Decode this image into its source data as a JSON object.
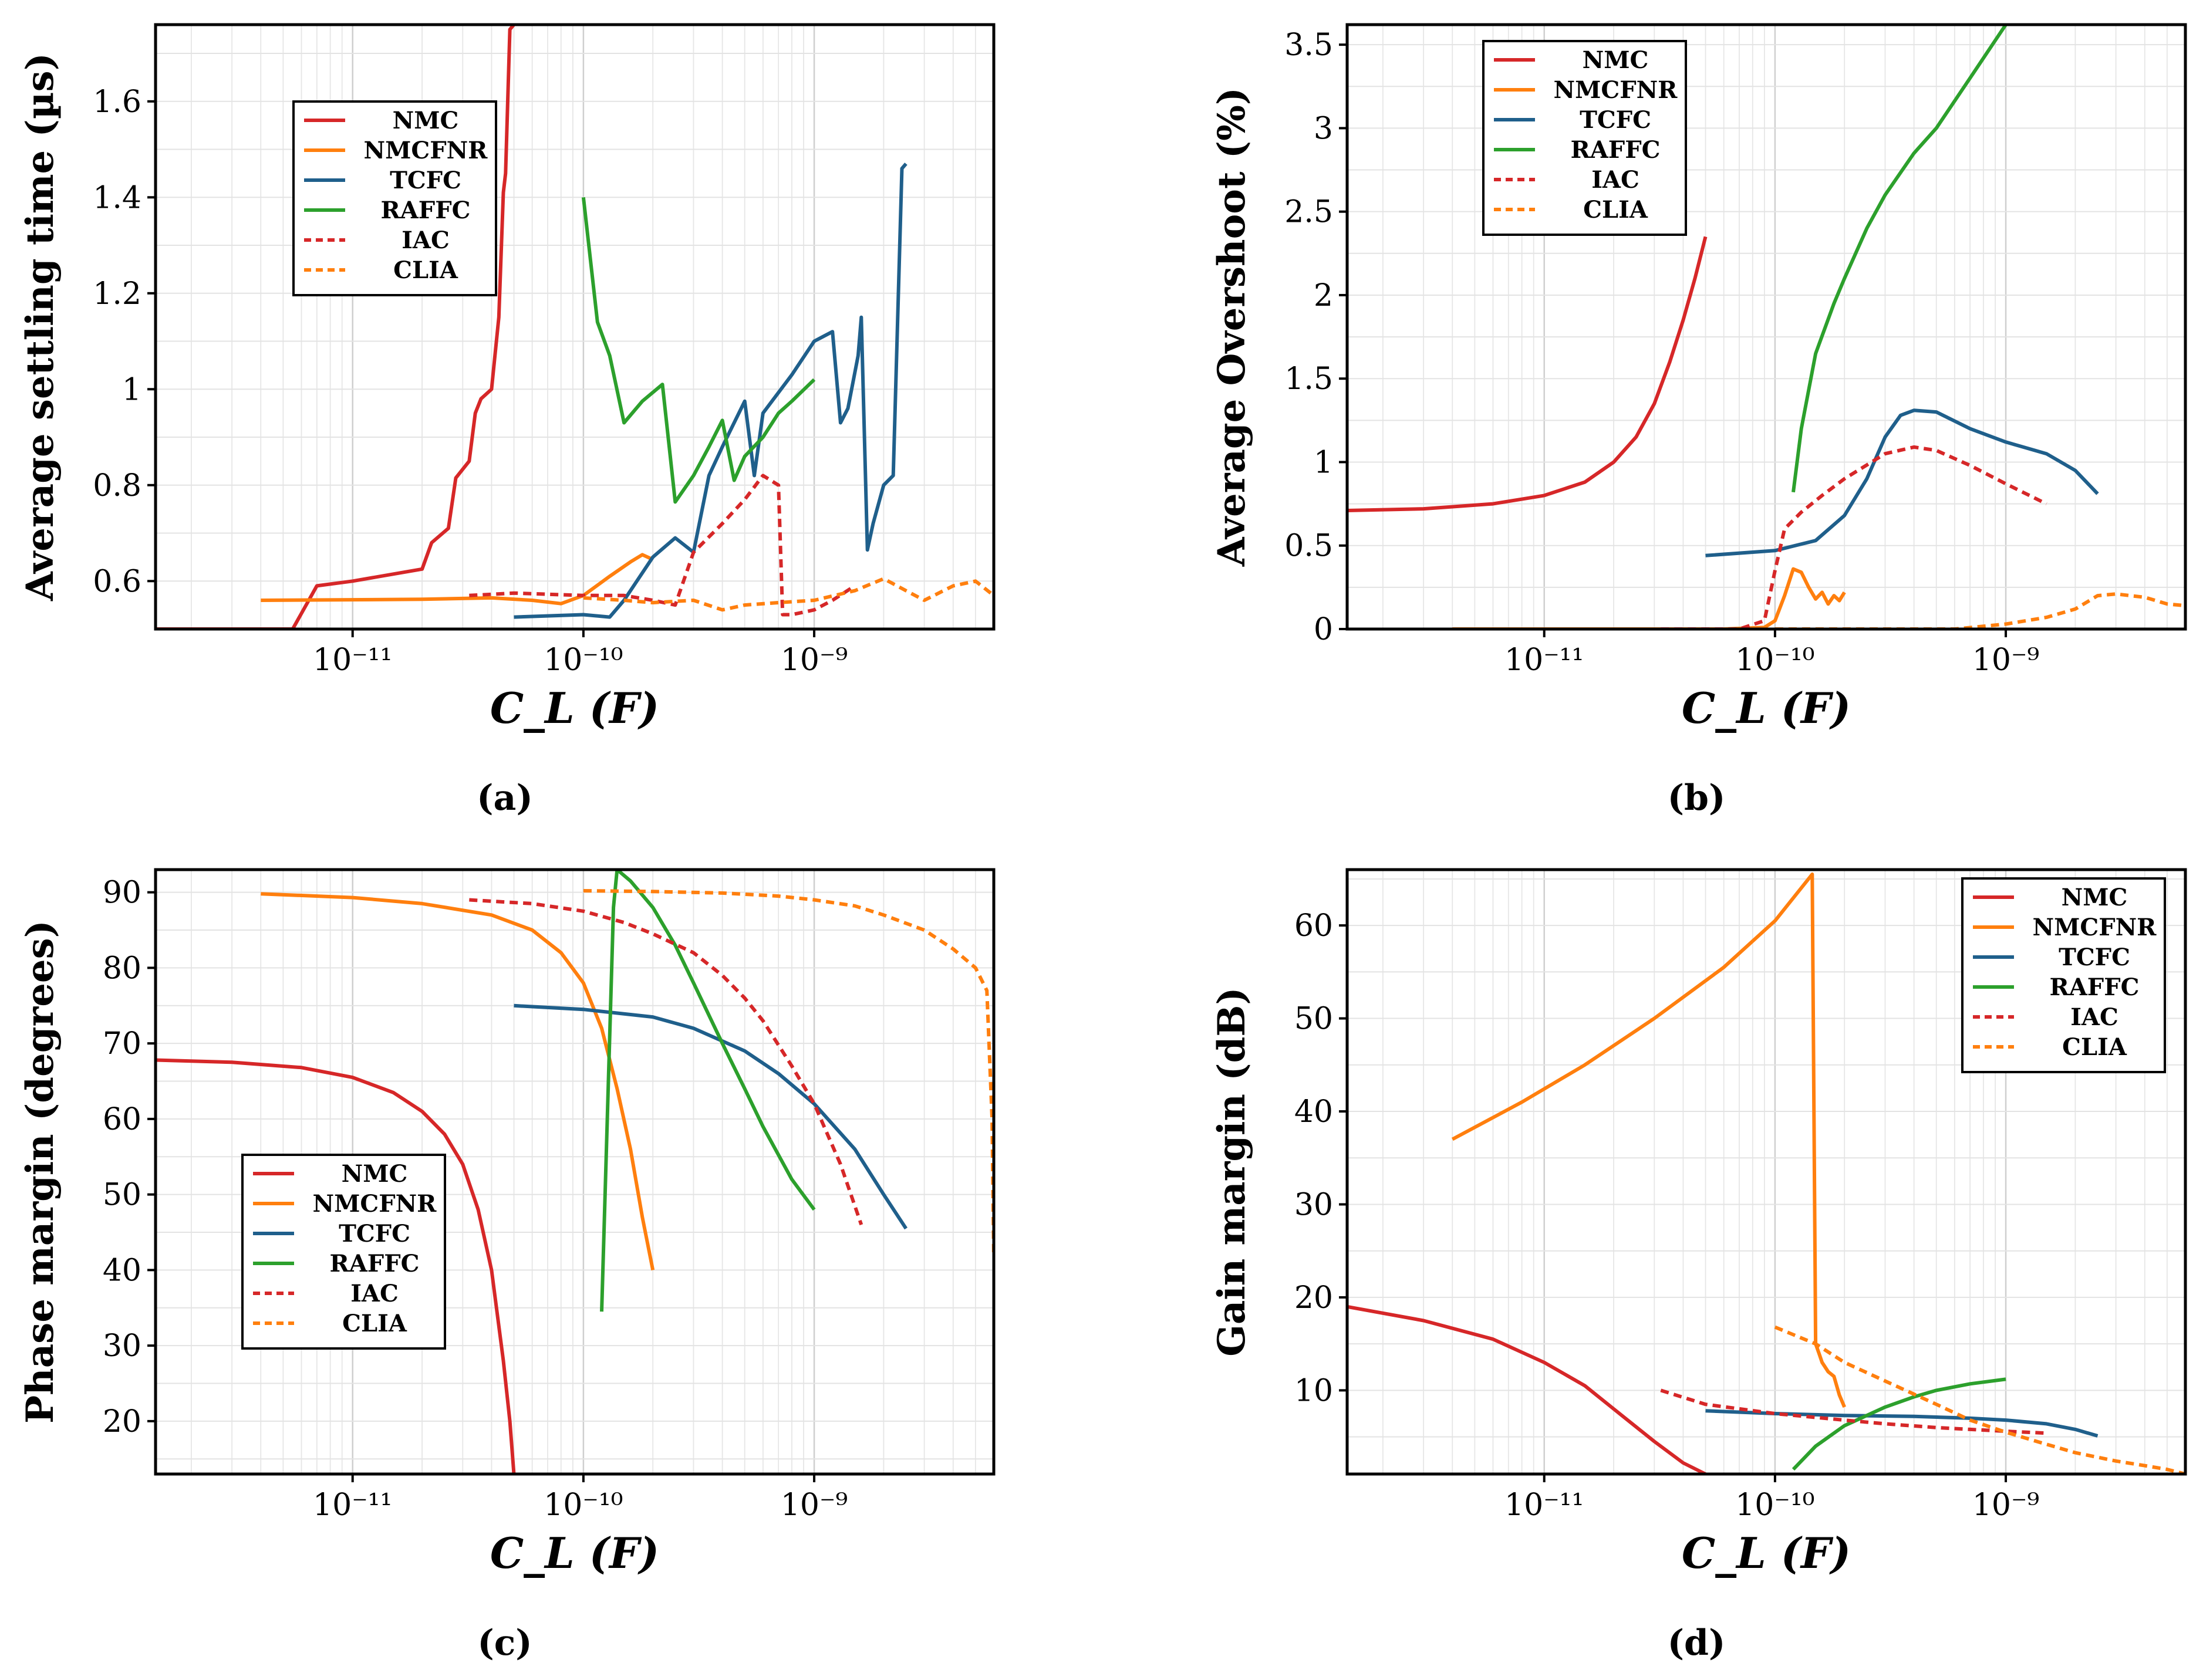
{
  "captions": [
    "(a)",
    "(b)",
    "(c)",
    "(d)"
  ],
  "colors": {
    "NMC": "#d62728",
    "NMCFNR": "#ff7f0e",
    "TCFC": "#1f5f8b",
    "RAFFC": "#2ca02c",
    "IAC": "#d62728",
    "CLIA": "#ff7f0e"
  },
  "chart_data": [
    {
      "type": "line",
      "xlabel": "C_L (F)",
      "ylabel": "Average settling time (µs)",
      "xscale": "log",
      "xlim": [
        1.4e-12,
        6e-09
      ],
      "ylim": [
        0.5,
        1.76
      ],
      "yticks": [
        0.6,
        0.8,
        1,
        1.2,
        1.4,
        1.6
      ],
      "yticklabels": [
        "0.6",
        "0.8",
        "1",
        "1.2",
        "1.4",
        "1.6"
      ],
      "xticks": [
        1e-11,
        1e-10,
        1e-09
      ],
      "xticklabels": [
        "10^-11",
        "10^-10",
        "10^-9"
      ],
      "legend": {
        "position": "upper-left",
        "entries": [
          "NMC",
          "NMCFNR",
          "TCFC",
          "RAFFC",
          "IAC",
          "CLIA"
        ]
      },
      "series": [
        {
          "name": "NMC",
          "style": "solid",
          "x": [
            1.4e-12,
            5.5e-12,
            7e-12,
            1e-11,
            2e-11,
            2.2e-11,
            2.6e-11,
            2.8e-11,
            3.2e-11,
            3.4e-11,
            3.6e-11,
            4e-11,
            4.3e-11,
            4.5e-11,
            4.6e-11,
            4.8e-11,
            5e-11
          ],
          "y": [
            0.5,
            0.5,
            0.59,
            0.6,
            0.625,
            0.68,
            0.71,
            0.815,
            0.85,
            0.95,
            0.98,
            1.0,
            1.15,
            1.41,
            1.45,
            1.75,
            1.76
          ]
        },
        {
          "name": "NMCFNR",
          "style": "solid",
          "x": [
            4e-12,
            2e-11,
            4e-11,
            6e-11,
            8e-11,
            1e-10,
            1.3e-10,
            1.6e-10,
            1.8e-10,
            2e-10
          ],
          "y": [
            0.56,
            0.562,
            0.565,
            0.56,
            0.553,
            0.57,
            0.61,
            0.64,
            0.655,
            0.645
          ]
        },
        {
          "name": "TCFC",
          "style": "solid",
          "x": [
            5e-11,
            1e-10,
            1.3e-10,
            1.5e-10,
            2e-10,
            2.5e-10,
            3e-10,
            3.5e-10,
            4e-10,
            5e-10,
            5.5e-10,
            6e-10,
            8e-10,
            1e-09,
            1.2e-09,
            1.3e-09,
            1.4e-09,
            1.55e-09,
            1.6e-09,
            1.7e-09,
            1.8e-09,
            2e-09,
            2.2e-09,
            2.4e-09,
            2.5e-09
          ],
          "y": [
            0.525,
            0.53,
            0.525,
            0.56,
            0.65,
            0.69,
            0.66,
            0.82,
            0.88,
            0.975,
            0.82,
            0.95,
            1.03,
            1.1,
            1.12,
            0.93,
            0.96,
            1.07,
            1.15,
            0.665,
            0.72,
            0.8,
            0.82,
            1.46,
            1.47
          ]
        },
        {
          "name": "RAFFC",
          "style": "solid",
          "x": [
            1e-10,
            1.15e-10,
            1.3e-10,
            1.5e-10,
            1.8e-10,
            2.2e-10,
            2.5e-10,
            3e-10,
            3.5e-10,
            4e-10,
            4.5e-10,
            5e-10,
            6e-10,
            7e-10,
            8e-10,
            1e-09
          ],
          "y": [
            1.4,
            1.14,
            1.07,
            0.93,
            0.975,
            1.01,
            0.765,
            0.82,
            0.88,
            0.935,
            0.81,
            0.86,
            0.9,
            0.95,
            0.975,
            1.02
          ]
        },
        {
          "name": "IAC",
          "style": "dashed",
          "x": [
            3.2e-11,
            5e-11,
            1e-10,
            1.5e-10,
            2e-10,
            2.5e-10,
            3e-10,
            4e-10,
            5e-10,
            6e-10,
            7e-10,
            7.3e-10,
            8e-10,
            1e-09,
            1.2e-09,
            1.5e-09
          ],
          "y": [
            0.57,
            0.575,
            0.57,
            0.57,
            0.56,
            0.55,
            0.66,
            0.72,
            0.77,
            0.82,
            0.8,
            0.53,
            0.53,
            0.54,
            0.56,
            0.59
          ]
        },
        {
          "name": "CLIA",
          "style": "dashed",
          "x": [
            1e-10,
            1.5e-10,
            2e-10,
            3e-10,
            4e-10,
            5e-10,
            7e-10,
            1e-09,
            1.5e-09,
            2e-09,
            2.5e-09,
            3e-09,
            4e-09,
            5e-09,
            6e-09
          ],
          "y": [
            0.565,
            0.56,
            0.555,
            0.56,
            0.54,
            0.55,
            0.555,
            0.56,
            0.58,
            0.605,
            0.58,
            0.56,
            0.59,
            0.6,
            0.57
          ]
        }
      ]
    },
    {
      "type": "line",
      "xlabel": "C_L (F)",
      "ylabel": "Average Overshoot (%)",
      "xscale": "log",
      "xlim": [
        1.4e-12,
        6e-09
      ],
      "ylim": [
        0,
        3.62
      ],
      "yticks": [
        0,
        0.5,
        1,
        1.5,
        2,
        2.5,
        3,
        3.5
      ],
      "yticklabels": [
        "0",
        "0.5",
        "1",
        "1.5",
        "2",
        "2.5",
        "3",
        "3.5"
      ],
      "xticks": [
        1e-11,
        1e-10,
        1e-09
      ],
      "xticklabels": [
        "10^-11",
        "10^-10",
        "10^-9"
      ],
      "legend": {
        "position": "upper-left",
        "entries": [
          "NMC",
          "NMCFNR",
          "TCFC",
          "RAFFC",
          "IAC",
          "CLIA"
        ]
      },
      "series": [
        {
          "name": "NMC",
          "style": "solid",
          "x": [
            1.4e-12,
            3e-12,
            6e-12,
            1e-11,
            1.5e-11,
            2e-11,
            2.5e-11,
            3e-11,
            3.5e-11,
            4e-11,
            4.5e-11,
            5e-11
          ],
          "y": [
            0.71,
            0.72,
            0.75,
            0.8,
            0.88,
            1.0,
            1.15,
            1.35,
            1.6,
            1.85,
            2.1,
            2.35
          ]
        },
        {
          "name": "NMCFNR",
          "style": "solid",
          "x": [
            4e-12,
            1e-11,
            3e-11,
            6e-11,
            9e-11,
            1e-10,
            1.1e-10,
            1.2e-10,
            1.3e-10,
            1.4e-10,
            1.5e-10,
            1.6e-10,
            1.7e-10,
            1.8e-10,
            1.9e-10,
            2e-10
          ],
          "y": [
            0.0,
            0.0,
            0.0,
            0.0,
            0.01,
            0.05,
            0.2,
            0.36,
            0.34,
            0.25,
            0.18,
            0.22,
            0.15,
            0.2,
            0.17,
            0.22
          ]
        },
        {
          "name": "TCFC",
          "style": "solid",
          "x": [
            5e-11,
            1e-10,
            1.5e-10,
            2e-10,
            2.5e-10,
            3e-10,
            3.5e-10,
            4e-10,
            5e-10,
            7e-10,
            1e-09,
            1.5e-09,
            2e-09,
            2.5e-09
          ],
          "y": [
            0.44,
            0.47,
            0.53,
            0.68,
            0.9,
            1.15,
            1.28,
            1.31,
            1.3,
            1.2,
            1.12,
            1.05,
            0.95,
            0.81
          ]
        },
        {
          "name": "RAFFC",
          "style": "solid",
          "x": [
            1.2e-10,
            1.3e-10,
            1.5e-10,
            1.8e-10,
            2e-10,
            2.5e-10,
            3e-10,
            4e-10,
            5e-10,
            7e-10,
            1e-09
          ],
          "y": [
            0.82,
            1.2,
            1.65,
            1.95,
            2.1,
            2.4,
            2.6,
            2.85,
            3.0,
            3.3,
            3.62
          ]
        },
        {
          "name": "IAC",
          "style": "dashed",
          "x": [
            3.2e-11,
            7e-11,
            9e-11,
            1e-10,
            1.1e-10,
            1.3e-10,
            1.6e-10,
            2e-10,
            3e-10,
            4e-10,
            5e-10,
            7e-10,
            1e-09,
            1.5e-09
          ],
          "y": [
            0.0,
            0.0,
            0.05,
            0.35,
            0.6,
            0.7,
            0.8,
            0.9,
            1.05,
            1.09,
            1.07,
            0.98,
            0.87,
            0.75
          ]
        },
        {
          "name": "CLIA",
          "style": "dashed",
          "x": [
            1e-10,
            3e-10,
            6e-10,
            1e-09,
            1.5e-09,
            2e-09,
            2.5e-09,
            3e-09,
            4e-09,
            5e-09,
            6e-09
          ],
          "y": [
            0.0,
            0.0,
            0.0,
            0.03,
            0.07,
            0.12,
            0.2,
            0.21,
            0.19,
            0.15,
            0.14
          ]
        }
      ]
    },
    {
      "type": "line",
      "xlabel": "C_L (F)",
      "ylabel": "Phase margin (degrees)",
      "xscale": "log",
      "xlim": [
        1.4e-12,
        6e-09
      ],
      "ylim": [
        13,
        93
      ],
      "yticks": [
        20,
        30,
        40,
        50,
        60,
        70,
        80,
        90
      ],
      "yticklabels": [
        "20",
        "30",
        "40",
        "50",
        "60",
        "70",
        "80",
        "90"
      ],
      "xticks": [
        1e-11,
        1e-10,
        1e-09
      ],
      "xticklabels": [
        "10^-11",
        "10^-10",
        "10^-9"
      ],
      "legend": {
        "position": "lower-left",
        "entries": [
          "NMC",
          "NMCFNR",
          "TCFC",
          "RAFFC",
          "IAC",
          "CLIA"
        ]
      },
      "series": [
        {
          "name": "NMC",
          "style": "solid",
          "x": [
            1.4e-12,
            3e-12,
            6e-12,
            1e-11,
            1.5e-11,
            2e-11,
            2.5e-11,
            3e-11,
            3.5e-11,
            4e-11,
            4.5e-11,
            4.8e-11,
            5e-11
          ],
          "y": [
            67.8,
            67.5,
            66.8,
            65.5,
            63.5,
            61,
            58,
            54,
            48,
            40,
            28,
            20,
            13
          ]
        },
        {
          "name": "NMCFNR",
          "style": "solid",
          "x": [
            4e-12,
            1e-11,
            2e-11,
            4e-11,
            6e-11,
            8e-11,
            1e-10,
            1.2e-10,
            1.4e-10,
            1.6e-10,
            1.8e-10,
            2e-10
          ],
          "y": [
            89.8,
            89.3,
            88.5,
            87,
            85,
            82,
            78,
            72,
            64,
            56,
            47,
            40
          ]
        },
        {
          "name": "TCFC",
          "style": "solid",
          "x": [
            5e-11,
            1e-10,
            2e-10,
            3e-10,
            5e-10,
            7e-10,
            1e-09,
            1.5e-09,
            2e-09,
            2.5e-09
          ],
          "y": [
            75,
            74.5,
            73.5,
            72,
            69,
            66,
            62,
            56,
            50,
            45.5
          ]
        },
        {
          "name": "RAFFC",
          "style": "solid",
          "x": [
            1.2e-10,
            1.35e-10,
            1.4e-10,
            1.6e-10,
            2e-10,
            2.5e-10,
            3e-10,
            4e-10,
            5e-10,
            6e-10,
            8e-10,
            1e-09
          ],
          "y": [
            34.5,
            88,
            93,
            91.5,
            88,
            83,
            78,
            70,
            64,
            59,
            52,
            48
          ]
        },
        {
          "name": "IAC",
          "style": "dashed",
          "x": [
            3.2e-11,
            6e-11,
            1e-10,
            1.5e-10,
            2e-10,
            3e-10,
            4e-10,
            5e-10,
            6e-10,
            8e-10,
            1e-09,
            1.3e-09,
            1.6e-09
          ],
          "y": [
            89,
            88.5,
            87.5,
            86,
            84.5,
            82,
            79,
            76,
            73,
            67,
            62,
            54,
            46
          ]
        },
        {
          "name": "CLIA",
          "style": "dashed",
          "x": [
            1e-10,
            2e-10,
            4e-10,
            7e-10,
            1e-09,
            1.5e-09,
            2e-09,
            3e-09,
            4e-09,
            5e-09,
            5.6e-09,
            5.9e-09,
            6e-09
          ],
          "y": [
            90.2,
            90.1,
            89.9,
            89.5,
            89,
            88.2,
            87,
            85,
            82.5,
            80,
            77,
            60,
            42
          ]
        }
      ]
    },
    {
      "type": "line",
      "xlabel": "C_L (F)",
      "ylabel": "Gain margin (dB)",
      "xscale": "log",
      "xlim": [
        1.4e-12,
        6e-09
      ],
      "ylim": [
        1,
        66
      ],
      "yticks": [
        10,
        20,
        30,
        40,
        50,
        60
      ],
      "yticklabels": [
        "10",
        "20",
        "30",
        "40",
        "50",
        "60"
      ],
      "xticks": [
        1e-11,
        1e-10,
        1e-09
      ],
      "xticklabels": [
        "10^-11",
        "10^-10",
        "10^-9"
      ],
      "legend": {
        "position": "upper-right",
        "entries": [
          "NMC",
          "NMCFNR",
          "TCFC",
          "RAFFC",
          "IAC",
          "CLIA"
        ]
      },
      "series": [
        {
          "name": "NMC",
          "style": "solid",
          "x": [
            1.4e-12,
            3e-12,
            6e-12,
            1e-11,
            1.5e-11,
            2e-11,
            3e-11,
            4e-11,
            5e-11
          ],
          "y": [
            19,
            17.5,
            15.5,
            13,
            10.5,
            8,
            4.5,
            2.2,
            1
          ]
        },
        {
          "name": "NMCFNR",
          "style": "solid",
          "x": [
            4e-12,
            8e-12,
            1.5e-11,
            3e-11,
            6e-11,
            1e-10,
            1.45e-10,
            1.5e-10,
            1.55e-10,
            1.6e-10,
            1.7e-10,
            1.8e-10,
            1.9e-10,
            2e-10
          ],
          "y": [
            37,
            41,
            45,
            50,
            55.5,
            60.5,
            65.5,
            15,
            14,
            13,
            12,
            11.5,
            9.5,
            8.2
          ]
        },
        {
          "name": "TCFC",
          "style": "solid",
          "x": [
            5e-11,
            1e-10,
            2e-10,
            4e-10,
            7e-10,
            1e-09,
            1.5e-09,
            2e-09,
            2.5e-09
          ],
          "y": [
            7.8,
            7.5,
            7.3,
            7.2,
            7.0,
            6.8,
            6.4,
            5.8,
            5.1
          ]
        },
        {
          "name": "RAFFC",
          "style": "solid",
          "x": [
            1.2e-10,
            1.5e-10,
            2e-10,
            3e-10,
            4e-10,
            5e-10,
            7e-10,
            1e-09
          ],
          "y": [
            1.5,
            4,
            6.2,
            8.2,
            9.3,
            10,
            10.7,
            11.2
          ]
        },
        {
          "name": "IAC",
          "style": "dashed",
          "x": [
            3.2e-11,
            5e-11,
            1e-10,
            2e-10,
            3e-10,
            5e-10,
            7e-10,
            1e-09,
            1.5e-09
          ],
          "y": [
            10,
            8.5,
            7.5,
            6.8,
            6.4,
            6.0,
            5.8,
            5.6,
            5.4
          ]
        },
        {
          "name": "CLIA",
          "style": "dashed",
          "x": [
            1e-10,
            1.5e-10,
            2e-10,
            3e-10,
            5e-10,
            7e-10,
            1e-09,
            1.5e-09,
            2e-09,
            3e-09,
            4e-09,
            5e-09,
            6e-09
          ],
          "y": [
            16.8,
            15,
            13,
            11,
            8.5,
            6.8,
            5.5,
            4.2,
            3.3,
            2.4,
            1.9,
            1.5,
            1.0
          ]
        }
      ]
    }
  ]
}
